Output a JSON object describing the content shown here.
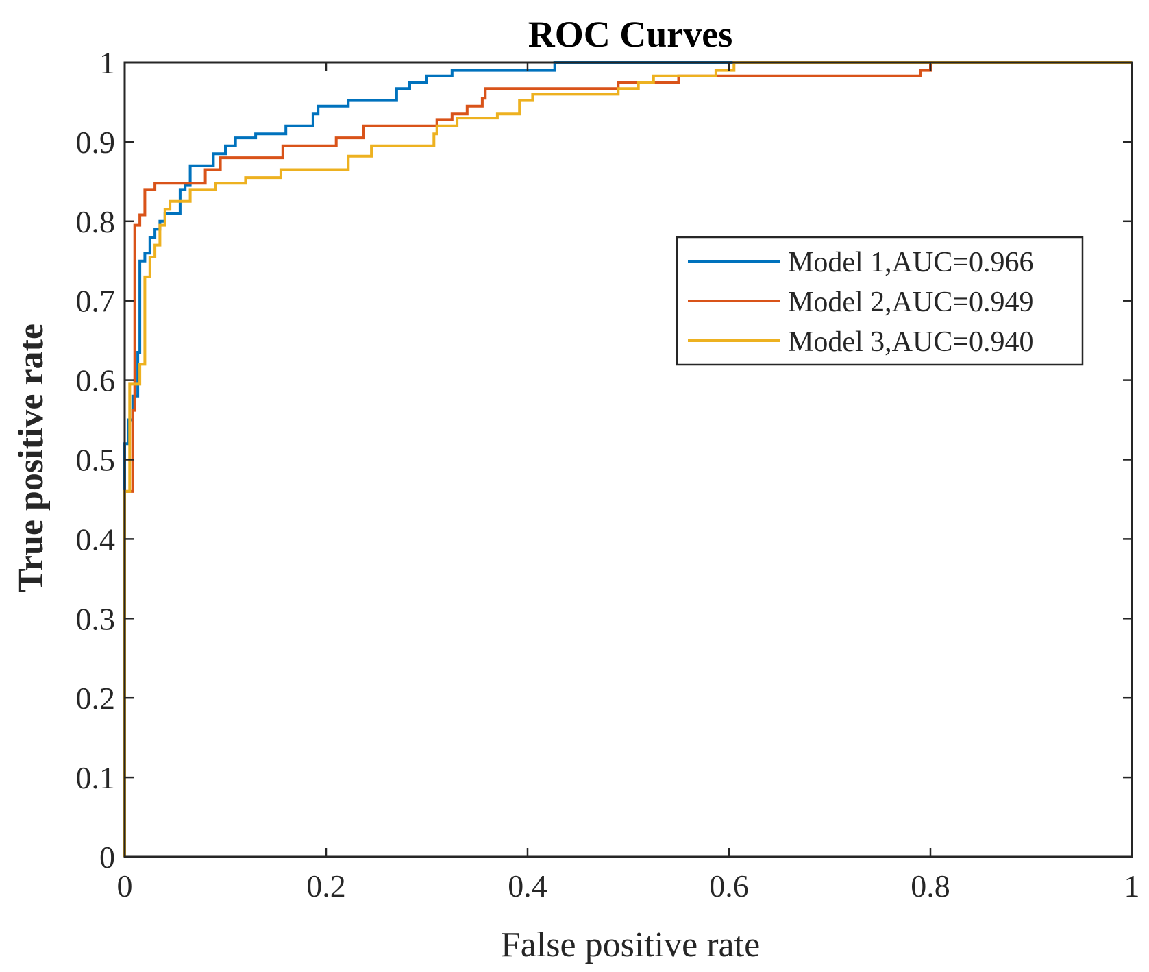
{
  "chart_data": {
    "type": "line",
    "title": "ROC Curves",
    "xlabel": "False positive rate",
    "ylabel": "True positive rate",
    "xlim": [
      0,
      1
    ],
    "ylim": [
      0,
      1
    ],
    "grid": false,
    "legend_position": "upper-right",
    "x_ticks": [
      0,
      0.2,
      0.4,
      0.6,
      0.8,
      1
    ],
    "x_tick_labels": [
      "0",
      "0.2",
      "0.4",
      "0.6",
      "0.8",
      "1"
    ],
    "y_ticks": [
      0,
      0.1,
      0.2,
      0.3,
      0.4,
      0.5,
      0.6,
      0.7,
      0.8,
      0.9,
      1
    ],
    "y_tick_labels": [
      "0",
      "0.1",
      "0.2",
      "0.3",
      "0.4",
      "0.5",
      "0.6",
      "0.7",
      "0.8",
      "0.9",
      "1"
    ],
    "series": [
      {
        "name": "Model 1,AUC=0.966",
        "color": "#0072BD",
        "points": [
          [
            0,
            0
          ],
          [
            0,
            0.46
          ],
          [
            0,
            0.52
          ],
          [
            0.004,
            0.52
          ],
          [
            0.004,
            0.55
          ],
          [
            0.008,
            0.55
          ],
          [
            0.008,
            0.58
          ],
          [
            0.013,
            0.58
          ],
          [
            0.013,
            0.635
          ],
          [
            0.015,
            0.635
          ],
          [
            0.015,
            0.75
          ],
          [
            0.02,
            0.75
          ],
          [
            0.02,
            0.76
          ],
          [
            0.025,
            0.76
          ],
          [
            0.025,
            0.78
          ],
          [
            0.03,
            0.78
          ],
          [
            0.03,
            0.79
          ],
          [
            0.035,
            0.79
          ],
          [
            0.035,
            0.8
          ],
          [
            0.04,
            0.8
          ],
          [
            0.04,
            0.81
          ],
          [
            0.055,
            0.81
          ],
          [
            0.055,
            0.84
          ],
          [
            0.06,
            0.84
          ],
          [
            0.06,
            0.845
          ],
          [
            0.065,
            0.845
          ],
          [
            0.065,
            0.87
          ],
          [
            0.088,
            0.87
          ],
          [
            0.088,
            0.885
          ],
          [
            0.1,
            0.885
          ],
          [
            0.1,
            0.895
          ],
          [
            0.11,
            0.895
          ],
          [
            0.11,
            0.905
          ],
          [
            0.13,
            0.905
          ],
          [
            0.13,
            0.91
          ],
          [
            0.16,
            0.91
          ],
          [
            0.16,
            0.92
          ],
          [
            0.187,
            0.92
          ],
          [
            0.187,
            0.935
          ],
          [
            0.192,
            0.935
          ],
          [
            0.192,
            0.945
          ],
          [
            0.222,
            0.945
          ],
          [
            0.222,
            0.952
          ],
          [
            0.27,
            0.952
          ],
          [
            0.27,
            0.967
          ],
          [
            0.283,
            0.967
          ],
          [
            0.283,
            0.975
          ],
          [
            0.3,
            0.975
          ],
          [
            0.3,
            0.983
          ],
          [
            0.325,
            0.983
          ],
          [
            0.325,
            0.99
          ],
          [
            0.427,
            0.99
          ],
          [
            0.427,
            1
          ],
          [
            1,
            1
          ]
        ]
      },
      {
        "name": "Model 2,AUC=0.949",
        "color": "#D95319",
        "points": [
          [
            0,
            0
          ],
          [
            0,
            0.46
          ],
          [
            0.008,
            0.46
          ],
          [
            0.008,
            0.562
          ],
          [
            0.01,
            0.562
          ],
          [
            0.01,
            0.795
          ],
          [
            0.015,
            0.795
          ],
          [
            0.015,
            0.808
          ],
          [
            0.02,
            0.808
          ],
          [
            0.02,
            0.84
          ],
          [
            0.03,
            0.84
          ],
          [
            0.03,
            0.848
          ],
          [
            0.08,
            0.848
          ],
          [
            0.08,
            0.865
          ],
          [
            0.095,
            0.865
          ],
          [
            0.095,
            0.88
          ],
          [
            0.157,
            0.88
          ],
          [
            0.157,
            0.895
          ],
          [
            0.21,
            0.895
          ],
          [
            0.21,
            0.905
          ],
          [
            0.237,
            0.905
          ],
          [
            0.237,
            0.92
          ],
          [
            0.31,
            0.92
          ],
          [
            0.31,
            0.928
          ],
          [
            0.325,
            0.928
          ],
          [
            0.325,
            0.935
          ],
          [
            0.34,
            0.935
          ],
          [
            0.34,
            0.945
          ],
          [
            0.355,
            0.945
          ],
          [
            0.355,
            0.955
          ],
          [
            0.358,
            0.955
          ],
          [
            0.358,
            0.967
          ],
          [
            0.49,
            0.967
          ],
          [
            0.49,
            0.975
          ],
          [
            0.55,
            0.975
          ],
          [
            0.55,
            0.983
          ],
          [
            0.79,
            0.983
          ],
          [
            0.79,
            0.99
          ],
          [
            0.8,
            0.99
          ],
          [
            0.8,
            1
          ],
          [
            1,
            1
          ]
        ]
      },
      {
        "name": "Model 3,AUC=0.940",
        "color": "#EDB120",
        "points": [
          [
            0,
            0
          ],
          [
            0,
            0.46
          ],
          [
            0.005,
            0.46
          ],
          [
            0.005,
            0.595
          ],
          [
            0.015,
            0.595
          ],
          [
            0.015,
            0.62
          ],
          [
            0.02,
            0.62
          ],
          [
            0.02,
            0.73
          ],
          [
            0.025,
            0.73
          ],
          [
            0.025,
            0.755
          ],
          [
            0.03,
            0.755
          ],
          [
            0.03,
            0.77
          ],
          [
            0.035,
            0.77
          ],
          [
            0.035,
            0.795
          ],
          [
            0.04,
            0.795
          ],
          [
            0.04,
            0.815
          ],
          [
            0.045,
            0.815
          ],
          [
            0.045,
            0.825
          ],
          [
            0.065,
            0.825
          ],
          [
            0.065,
            0.84
          ],
          [
            0.09,
            0.84
          ],
          [
            0.09,
            0.848
          ],
          [
            0.12,
            0.848
          ],
          [
            0.12,
            0.855
          ],
          [
            0.155,
            0.855
          ],
          [
            0.155,
            0.865
          ],
          [
            0.222,
            0.865
          ],
          [
            0.222,
            0.882
          ],
          [
            0.245,
            0.882
          ],
          [
            0.245,
            0.895
          ],
          [
            0.307,
            0.895
          ],
          [
            0.307,
            0.91
          ],
          [
            0.31,
            0.91
          ],
          [
            0.31,
            0.92
          ],
          [
            0.33,
            0.92
          ],
          [
            0.33,
            0.93
          ],
          [
            0.37,
            0.93
          ],
          [
            0.37,
            0.935
          ],
          [
            0.392,
            0.935
          ],
          [
            0.392,
            0.952
          ],
          [
            0.405,
            0.952
          ],
          [
            0.405,
            0.96
          ],
          [
            0.49,
            0.96
          ],
          [
            0.49,
            0.967
          ],
          [
            0.51,
            0.967
          ],
          [
            0.51,
            0.975
          ],
          [
            0.525,
            0.975
          ],
          [
            0.525,
            0.983
          ],
          [
            0.587,
            0.983
          ],
          [
            0.587,
            0.99
          ],
          [
            0.605,
            0.99
          ],
          [
            0.605,
            1
          ],
          [
            1,
            1
          ]
        ]
      }
    ]
  }
}
